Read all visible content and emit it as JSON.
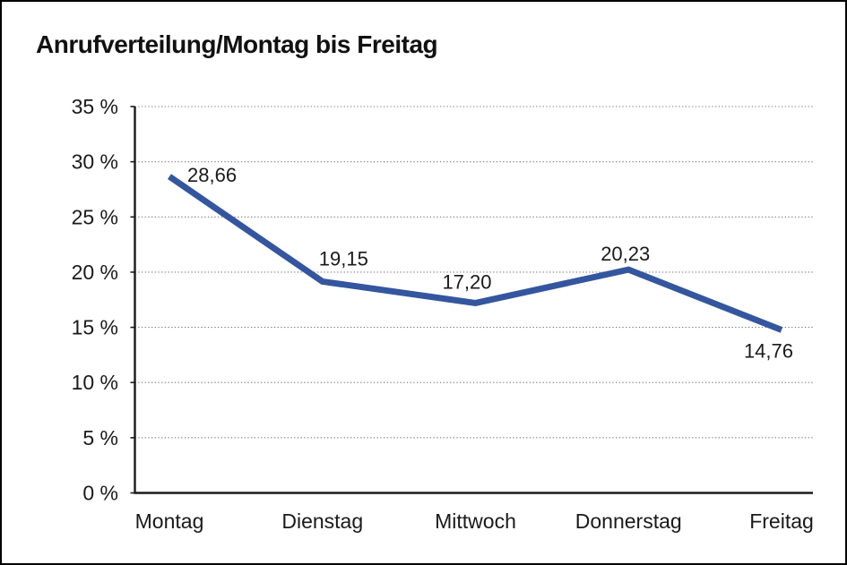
{
  "chart_data": {
    "type": "line",
    "title": "Anrufverteilung/Montag bis Freitag",
    "categories": [
      "Montag",
      "Dienstag",
      "Mittwoch",
      "Donnerstag",
      "Freitag"
    ],
    "values": [
      28.66,
      19.15,
      17.2,
      20.23,
      14.76
    ],
    "value_labels": [
      "28,66",
      "19,15",
      "17,20",
      "20,23",
      "14,76"
    ],
    "xlabel": "",
    "ylabel": "",
    "ylim": [
      0,
      35
    ],
    "ytick_step": 5,
    "ytick_labels": [
      "0 %",
      "5 %",
      "10 %",
      "15 %",
      "20 %",
      "25 %",
      "30 %",
      "35 %"
    ],
    "grid": "horizontal-dotted",
    "legend": "none",
    "line_color": "#34569f",
    "axis_color": "#1a1a1a",
    "grid_color": "#7a7a7a",
    "frame_border_color": "#000000"
  }
}
